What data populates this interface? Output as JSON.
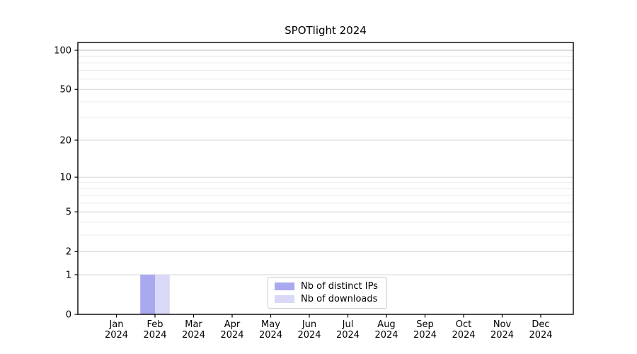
{
  "chart_data": {
    "type": "bar",
    "title": "SPOTlight 2024",
    "categories": [
      "Jan 2024",
      "Feb 2024",
      "Mar 2024",
      "Apr 2024",
      "May 2024",
      "Jun 2024",
      "Jul 2024",
      "Aug 2024",
      "Sep 2024",
      "Oct 2024",
      "Nov 2024",
      "Dec 2024"
    ],
    "series": [
      {
        "name": "Nb of distinct IPs",
        "color": "#a9a9f0",
        "values": [
          0,
          1,
          0,
          0,
          0,
          0,
          0,
          0,
          0,
          0,
          0,
          0
        ]
      },
      {
        "name": "Nb of downloads",
        "color": "#d9d9f7",
        "values": [
          0,
          1,
          0,
          0,
          0,
          0,
          0,
          0,
          0,
          0,
          0,
          0
        ]
      }
    ],
    "y_axis": {
      "scale": "log1p",
      "ylim": [
        0,
        100
      ],
      "major_ticks": [
        0,
        1,
        2,
        5,
        10,
        20,
        50,
        100
      ],
      "minor_ticks": [
        3,
        4,
        6,
        7,
        8,
        9,
        30,
        40,
        60,
        70,
        80,
        90
      ]
    },
    "legend": {
      "position": "lower center"
    },
    "grid": "horizontal-only"
  }
}
